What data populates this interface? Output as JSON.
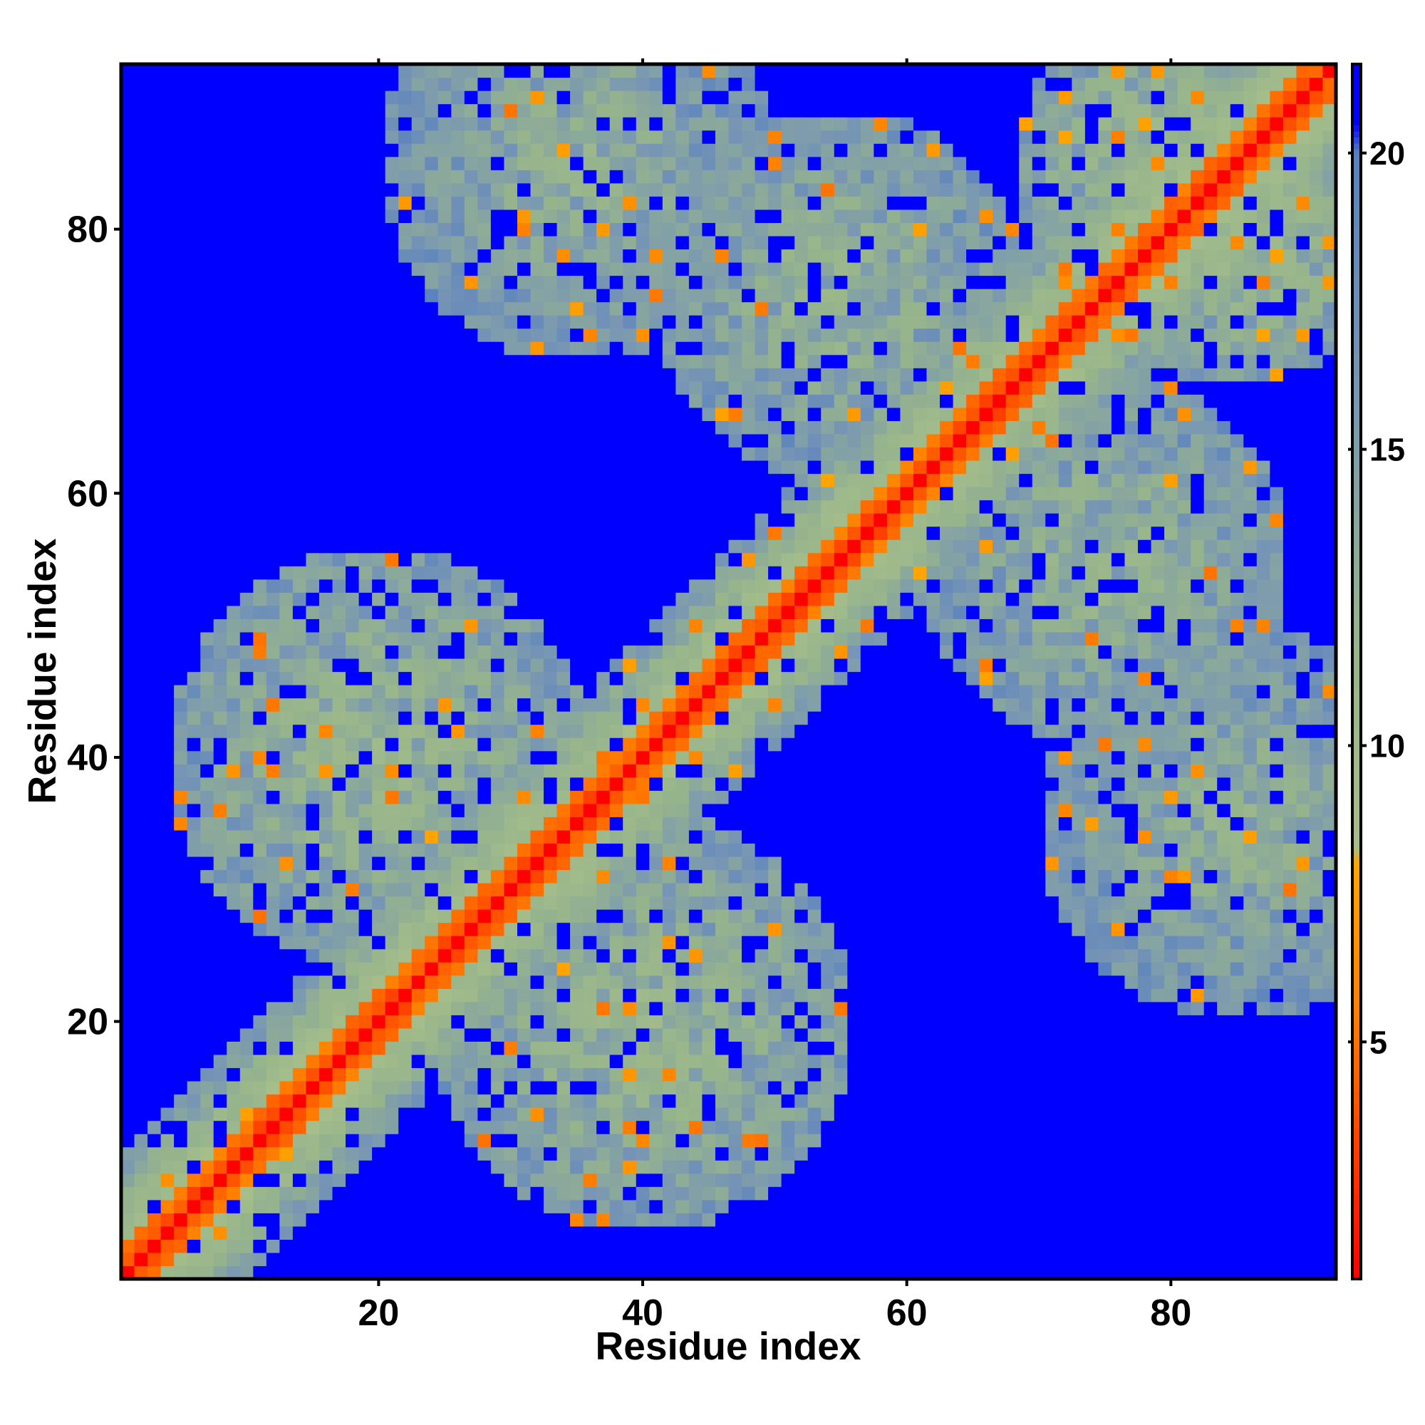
{
  "chart_data": {
    "type": "heatmap",
    "title": "",
    "xlabel": "Residue index",
    "ylabel": "Residue index",
    "xlim": [
      1,
      92
    ],
    "ylim": [
      1,
      92
    ],
    "n_residues": 92,
    "x_ticks": [
      20,
      40,
      60,
      80
    ],
    "y_ticks": [
      20,
      40,
      60,
      80
    ],
    "colorbar": {
      "ticks": [
        5,
        10,
        15,
        20
      ],
      "range": [
        1,
        21.5
      ],
      "colormap": [
        {
          "value": 1.0,
          "color": "#ff0000"
        },
        {
          "value": 5.5,
          "color": "#ff8000"
        },
        {
          "value": 8.0,
          "color": "#ffa500"
        },
        {
          "value": 8.3,
          "color": "#a6be8a"
        },
        {
          "value": 12.0,
          "color": "#96b48c"
        },
        {
          "value": 16.0,
          "color": "#7896b4"
        },
        {
          "value": 20.0,
          "color": "#5a82be"
        },
        {
          "value": 20.5,
          "color": "#0000ff"
        }
      ]
    },
    "matrix_description": "Symmetric residue-residue distance map: distance ~1 on diagonal increasing away; values capped at ~21 (blue). Contact (blue-dominant) and semi-contact regions as drawn.",
    "regions": [
      {
        "x": [
          1,
          92
        ],
        "y": [
          1,
          92
        ],
        "kind": "background",
        "value": 21
      },
      {
        "center_x": 20,
        "center_y": 40,
        "radius": 16,
        "value": 12.5
      },
      {
        "center_x": 40,
        "center_y": 20,
        "radius": 16,
        "value": 12.5
      },
      {
        "center_x": 35,
        "center_y": 85,
        "radius": 15,
        "value": 13.5
      },
      {
        "center_x": 85,
        "center_y": 35,
        "radius": 15,
        "value": 13.5
      },
      {
        "center_x": 55,
        "center_y": 75,
        "radius": 14,
        "value": 13
      },
      {
        "center_x": 75,
        "center_y": 55,
        "radius": 14,
        "value": 13
      },
      {
        "center_x": 80,
        "center_y": 85,
        "radius": 12,
        "value": 12
      },
      {
        "center_x": 85,
        "center_y": 80,
        "radius": 12,
        "value": 12
      }
    ]
  }
}
